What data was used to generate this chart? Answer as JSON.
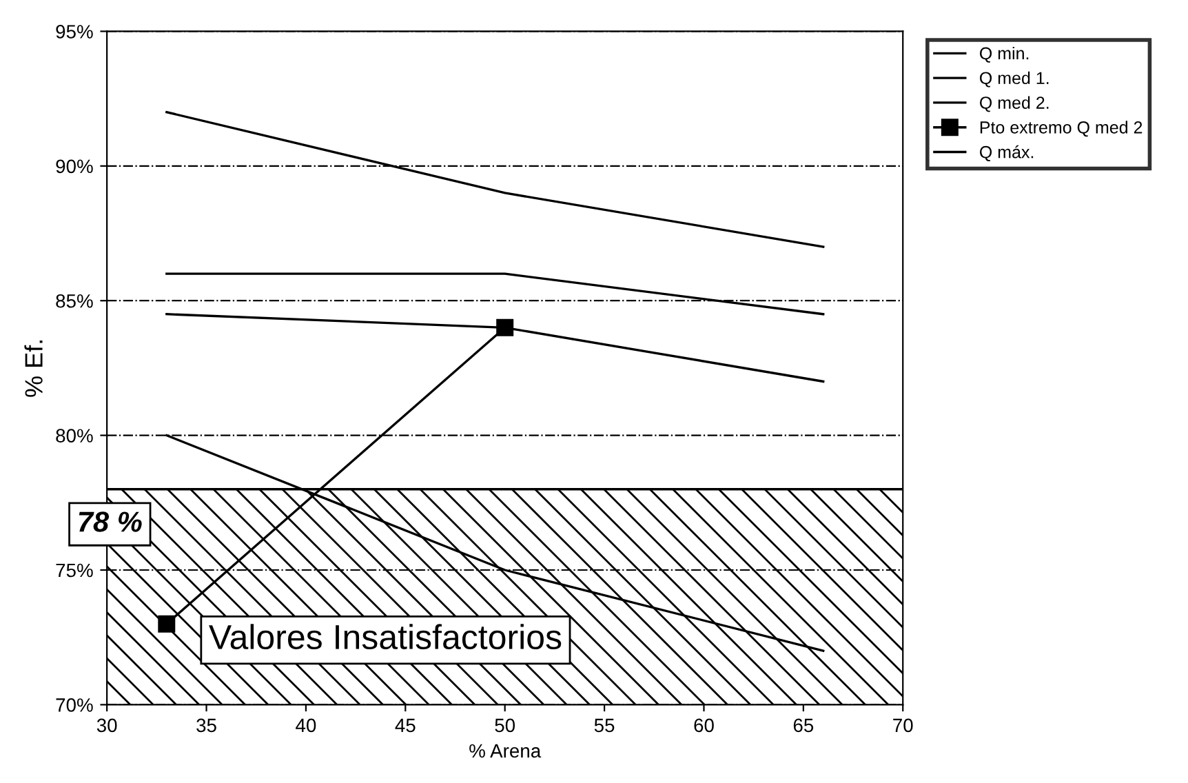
{
  "chart_data": {
    "type": "line",
    "xlabel": "% Arena",
    "ylabel": "% Ef.",
    "x": [
      33,
      50,
      66
    ],
    "series": [
      {
        "name": "Q min.",
        "color": "#000000",
        "values": [
          92,
          89,
          87
        ]
      },
      {
        "name": "Q med 1.",
        "color": "#000000",
        "values": [
          86,
          86,
          84.5
        ]
      },
      {
        "name": "Q med 2.",
        "color": "#000000",
        "values": [
          84.5,
          84,
          82
        ]
      },
      {
        "name": "Pto extremo Q med 2",
        "color": "#000000",
        "x": [
          33,
          50
        ],
        "values": [
          73,
          84
        ],
        "marker": "square"
      },
      {
        "name": "Q máx.",
        "color": "#000000",
        "values": [
          80,
          75,
          72
        ]
      }
    ],
    "xlim": [
      30,
      70
    ],
    "xticks": [
      30,
      35,
      40,
      45,
      50,
      55,
      60,
      65,
      70
    ],
    "ylim": [
      70,
      95
    ],
    "yticks": [
      {
        "value": 70,
        "label": "70%"
      },
      {
        "value": 75,
        "label": "75%"
      },
      {
        "value": 80,
        "label": "80%"
      },
      {
        "value": 85,
        "label": "85%"
      },
      {
        "value": 90,
        "label": "90%"
      },
      {
        "value": 95,
        "label": "95%"
      }
    ],
    "ref_lines": [
      {
        "axis": "y",
        "value": 78,
        "label": "78 %",
        "color": "#000000"
      }
    ],
    "bands": [
      {
        "axis": "y",
        "from": 70,
        "to": 78,
        "label": "Valores Insatisfactorios"
      }
    ],
    "grid": "y",
    "legend": "top right",
    "line_style": "solid",
    "marker": "none"
  }
}
